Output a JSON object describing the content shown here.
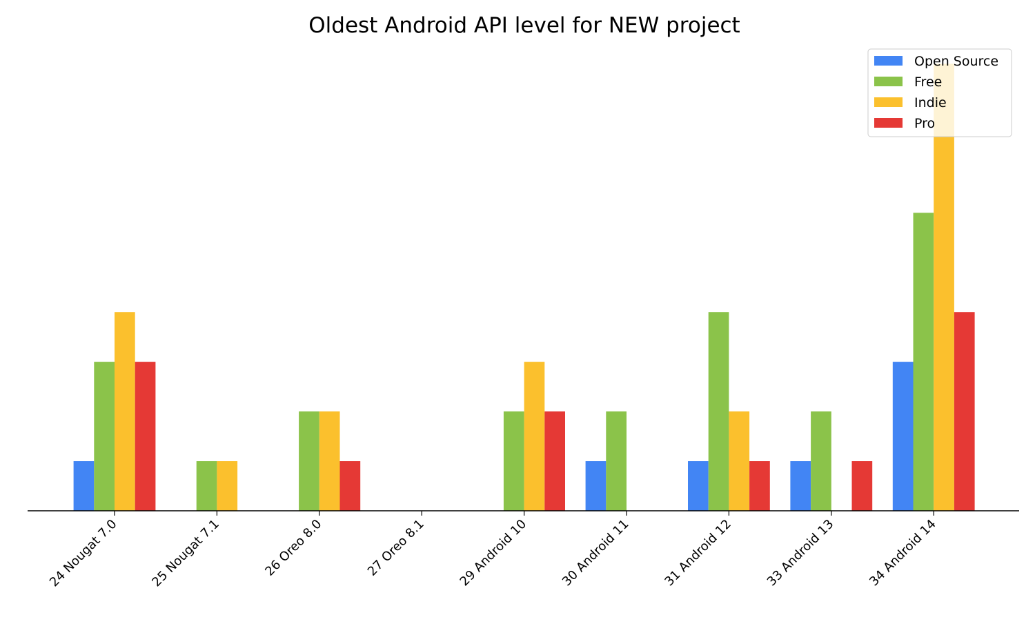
{
  "chart_data": {
    "type": "bar",
    "title": "Oldest Android API level for NEW project",
    "xlabel": "",
    "ylabel": "",
    "categories": [
      "24 Nougat 7.0",
      "25 Nougat 7.1",
      "26 Oreo 8.0",
      "27 Oreo 8.1",
      "29 Android 10",
      "30 Android 11",
      "31 Android 12",
      "33 Android 13",
      "34 Android 14"
    ],
    "series": [
      {
        "name": "Open Source",
        "color": "#4285F4",
        "values": [
          1,
          0,
          0,
          0,
          0,
          1,
          1,
          1,
          3
        ]
      },
      {
        "name": "Free",
        "color": "#8BC34A",
        "values": [
          3,
          1,
          2,
          0,
          2,
          2,
          4,
          2,
          6
        ]
      },
      {
        "name": "Indie",
        "color": "#FBC02D",
        "values": [
          4,
          1,
          2,
          0,
          3,
          0,
          2,
          0,
          9
        ]
      },
      {
        "name": "Pro",
        "color": "#E53935",
        "values": [
          3,
          0,
          1,
          0,
          2,
          0,
          1,
          1,
          4
        ]
      }
    ],
    "ylim": [
      0,
      9.45
    ],
    "grid": false,
    "legend_position": "top-right"
  }
}
